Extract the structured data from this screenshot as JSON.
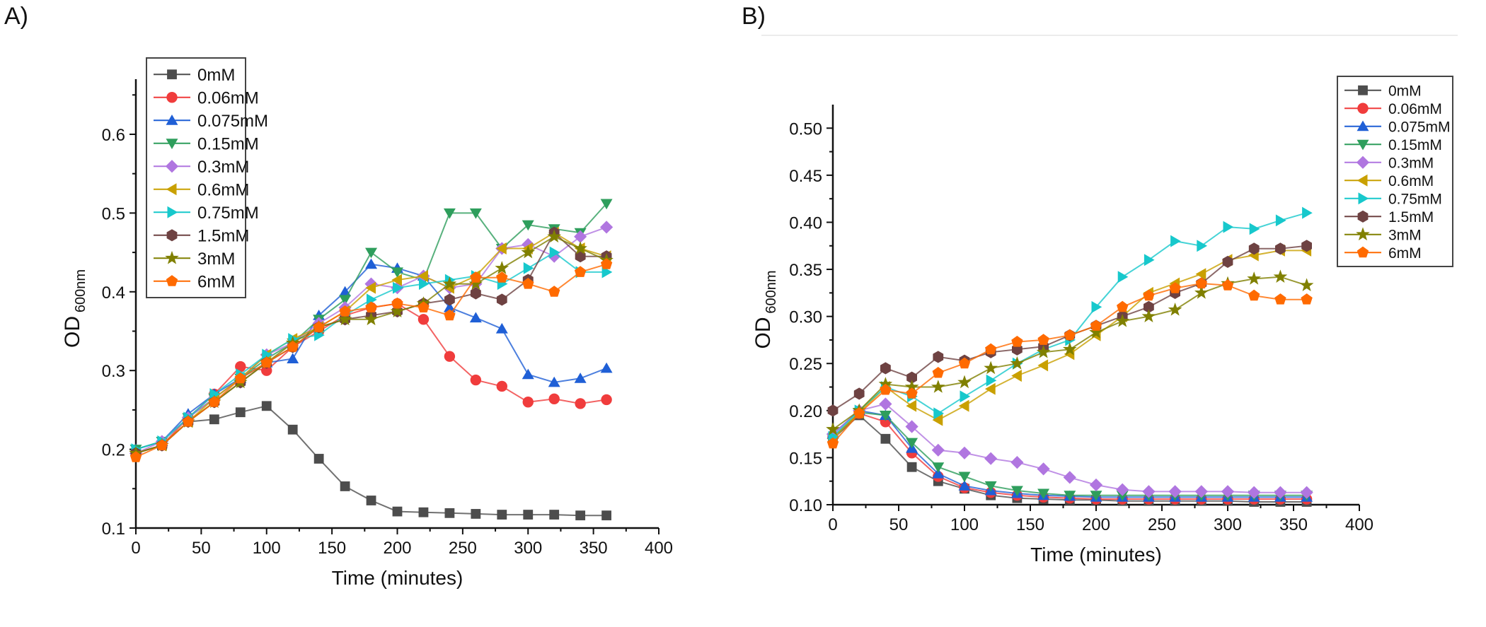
{
  "panels": {
    "a": "A)",
    "b": "B)"
  },
  "chart_data": [
    {
      "type": "line",
      "panel": "A)",
      "xlabel": "Time (minutes)",
      "ylabel": "OD",
      "ylabel_sub": "600nm",
      "xlim": [
        0,
        400
      ],
      "ylim": [
        0.1,
        0.67
      ],
      "xticks": [
        0,
        50,
        100,
        150,
        200,
        250,
        300,
        350,
        400
      ],
      "yticks": [
        0.1,
        0.2,
        0.3,
        0.4,
        0.5,
        0.6
      ],
      "ytick_labels": [
        "0.1",
        "0.2",
        "0.3",
        "0.4",
        "0.5",
        "0.6"
      ],
      "legend_position": "top-left",
      "grid": false,
      "x": [
        0,
        20,
        40,
        60,
        80,
        100,
        120,
        140,
        160,
        180,
        200,
        220,
        240,
        260,
        280,
        300,
        320,
        340,
        360
      ],
      "series": [
        {
          "name": "0mM",
          "color": "#4d4d4d",
          "marker": "square",
          "values": [
            0.195,
            0.205,
            0.235,
            0.238,
            0.247,
            0.255,
            0.225,
            0.188,
            0.153,
            0.135,
            0.121,
            0.12,
            0.119,
            0.118,
            0.117,
            0.117,
            0.117,
            0.116,
            0.116
          ]
        },
        {
          "name": "0.06mM",
          "color": "#f03c3c",
          "marker": "circle",
          "values": [
            0.195,
            0.205,
            0.24,
            0.27,
            0.305,
            0.3,
            0.33,
            0.35,
            0.37,
            0.38,
            0.385,
            0.365,
            0.318,
            0.288,
            0.28,
            0.26,
            0.264,
            0.258,
            0.263
          ]
        },
        {
          "name": "0.075mM",
          "color": "#1f5fd6",
          "marker": "triangle-up",
          "values": [
            0.2,
            0.21,
            0.245,
            0.27,
            0.29,
            0.31,
            0.315,
            0.37,
            0.4,
            0.435,
            0.43,
            0.42,
            0.38,
            0.367,
            0.353,
            0.295,
            0.285,
            0.29,
            0.303
          ]
        },
        {
          "name": "0.15mM",
          "color": "#2e9e5c",
          "marker": "triangle-down",
          "values": [
            0.2,
            0.21,
            0.24,
            0.265,
            0.29,
            0.315,
            0.335,
            0.365,
            0.39,
            0.45,
            0.425,
            0.415,
            0.5,
            0.5,
            0.455,
            0.485,
            0.48,
            0.475,
            0.512
          ]
        },
        {
          "name": "0.3mM",
          "color": "#b076e0",
          "marker": "diamond",
          "values": [
            0.195,
            0.21,
            0.24,
            0.265,
            0.29,
            0.32,
            0.335,
            0.36,
            0.38,
            0.41,
            0.405,
            0.42,
            0.405,
            0.41,
            0.455,
            0.46,
            0.445,
            0.47,
            0.482
          ]
        },
        {
          "name": "0.6mM",
          "color": "#c9a000",
          "marker": "triangle-left",
          "values": [
            0.195,
            0.205,
            0.235,
            0.265,
            0.29,
            0.32,
            0.34,
            0.355,
            0.375,
            0.405,
            0.415,
            0.42,
            0.405,
            0.42,
            0.455,
            0.455,
            0.475,
            0.455,
            0.445
          ]
        },
        {
          "name": "0.75mM",
          "color": "#17c8cc",
          "marker": "triangle-right",
          "values": [
            0.2,
            0.21,
            0.24,
            0.27,
            0.295,
            0.32,
            0.34,
            0.345,
            0.37,
            0.39,
            0.405,
            0.41,
            0.415,
            0.42,
            0.41,
            0.43,
            0.45,
            0.425,
            0.425
          ]
        },
        {
          "name": "1.5mM",
          "color": "#6e4242",
          "marker": "hexagon",
          "values": [
            0.195,
            0.205,
            0.235,
            0.26,
            0.285,
            0.31,
            0.33,
            0.355,
            0.365,
            0.37,
            0.375,
            0.385,
            0.39,
            0.398,
            0.39,
            0.415,
            0.475,
            0.445,
            0.445
          ]
        },
        {
          "name": "3mM",
          "color": "#808000",
          "marker": "star",
          "values": [
            0.195,
            0.205,
            0.235,
            0.26,
            0.285,
            0.31,
            0.335,
            0.355,
            0.365,
            0.365,
            0.375,
            0.385,
            0.41,
            0.41,
            0.43,
            0.45,
            0.47,
            0.455,
            0.44
          ]
        },
        {
          "name": "6mM",
          "color": "#ff6a00",
          "marker": "pentagon",
          "values": [
            0.19,
            0.205,
            0.235,
            0.26,
            0.29,
            0.31,
            0.33,
            0.355,
            0.375,
            0.38,
            0.385,
            0.38,
            0.37,
            0.418,
            0.418,
            0.41,
            0.4,
            0.425,
            0.435
          ]
        }
      ]
    },
    {
      "type": "line",
      "panel": "B)",
      "xlabel": "Time (minutes)",
      "ylabel": "OD",
      "ylabel_sub": "600nm",
      "xlim": [
        0,
        400
      ],
      "ylim": [
        0.1,
        0.525
      ],
      "xticks": [
        0,
        50,
        100,
        150,
        200,
        250,
        300,
        350,
        400
      ],
      "yticks": [
        0.1,
        0.15,
        0.2,
        0.25,
        0.3,
        0.35,
        0.4,
        0.45,
        0.5
      ],
      "ytick_labels": [
        "0.10",
        "0.15",
        "0.20",
        "0.25",
        "0.30",
        "0.35",
        "0.40",
        "0.45",
        "0.50"
      ],
      "legend_position": "top-right",
      "grid": false,
      "x": [
        0,
        20,
        40,
        60,
        80,
        100,
        120,
        140,
        160,
        180,
        200,
        220,
        240,
        260,
        280,
        300,
        320,
        340,
        360
      ],
      "series": [
        {
          "name": "0mM",
          "color": "#4d4d4d",
          "marker": "square",
          "values": [
            0.17,
            0.195,
            0.17,
            0.14,
            0.125,
            0.117,
            0.11,
            0.107,
            0.106,
            0.105,
            0.105,
            0.104,
            0.104,
            0.104,
            0.104,
            0.104,
            0.103,
            0.103,
            0.103
          ]
        },
        {
          "name": "0.06mM",
          "color": "#f03c3c",
          "marker": "circle",
          "values": [
            0.172,
            0.197,
            0.188,
            0.155,
            0.13,
            0.118,
            0.113,
            0.11,
            0.108,
            0.107,
            0.106,
            0.106,
            0.106,
            0.106,
            0.106,
            0.106,
            0.106,
            0.106,
            0.106
          ]
        },
        {
          "name": "0.075mM",
          "color": "#1f5fd6",
          "marker": "triangle-up",
          "values": [
            0.175,
            0.2,
            0.195,
            0.16,
            0.133,
            0.12,
            0.115,
            0.112,
            0.11,
            0.109,
            0.108,
            0.108,
            0.108,
            0.108,
            0.108,
            0.108,
            0.108,
            0.108,
            0.108
          ]
        },
        {
          "name": "0.15mM",
          "color": "#2e9e5c",
          "marker": "triangle-down",
          "values": [
            0.17,
            0.198,
            0.195,
            0.166,
            0.14,
            0.13,
            0.12,
            0.115,
            0.112,
            0.11,
            0.11,
            0.11,
            0.11,
            0.11,
            0.11,
            0.11,
            0.11,
            0.11,
            0.11
          ]
        },
        {
          "name": "0.3mM",
          "color": "#b076e0",
          "marker": "diamond",
          "values": [
            0.175,
            0.2,
            0.207,
            0.183,
            0.158,
            0.155,
            0.149,
            0.145,
            0.138,
            0.129,
            0.121,
            0.116,
            0.114,
            0.114,
            0.114,
            0.114,
            0.113,
            0.113,
            0.113
          ]
        },
        {
          "name": "0.6mM",
          "color": "#c9a000",
          "marker": "triangle-left",
          "values": [
            0.17,
            0.198,
            0.225,
            0.205,
            0.19,
            0.205,
            0.223,
            0.237,
            0.248,
            0.26,
            0.28,
            0.3,
            0.325,
            0.335,
            0.345,
            0.36,
            0.365,
            0.37,
            0.37
          ]
        },
        {
          "name": "0.75mM",
          "color": "#17c8cc",
          "marker": "triangle-right",
          "values": [
            0.172,
            0.2,
            0.225,
            0.215,
            0.197,
            0.215,
            0.232,
            0.25,
            0.265,
            0.275,
            0.31,
            0.342,
            0.36,
            0.38,
            0.375,
            0.395,
            0.393,
            0.402,
            0.41
          ]
        },
        {
          "name": "1.5mM",
          "color": "#6e4242",
          "marker": "hexagon",
          "values": [
            0.2,
            0.218,
            0.245,
            0.235,
            0.257,
            0.253,
            0.262,
            0.265,
            0.268,
            0.28,
            0.29,
            0.3,
            0.31,
            0.325,
            0.335,
            0.358,
            0.372,
            0.372,
            0.375
          ]
        },
        {
          "name": "3mM",
          "color": "#808000",
          "marker": "star",
          "values": [
            0.18,
            0.2,
            0.228,
            0.225,
            0.225,
            0.23,
            0.245,
            0.25,
            0.262,
            0.265,
            0.283,
            0.295,
            0.3,
            0.307,
            0.325,
            0.335,
            0.34,
            0.342,
            0.333
          ]
        },
        {
          "name": "6mM",
          "color": "#ff6a00",
          "marker": "pentagon",
          "values": [
            0.165,
            0.197,
            0.222,
            0.218,
            0.24,
            0.25,
            0.265,
            0.273,
            0.275,
            0.28,
            0.29,
            0.31,
            0.322,
            0.33,
            0.335,
            0.333,
            0.322,
            0.318,
            0.318
          ]
        }
      ]
    }
  ]
}
